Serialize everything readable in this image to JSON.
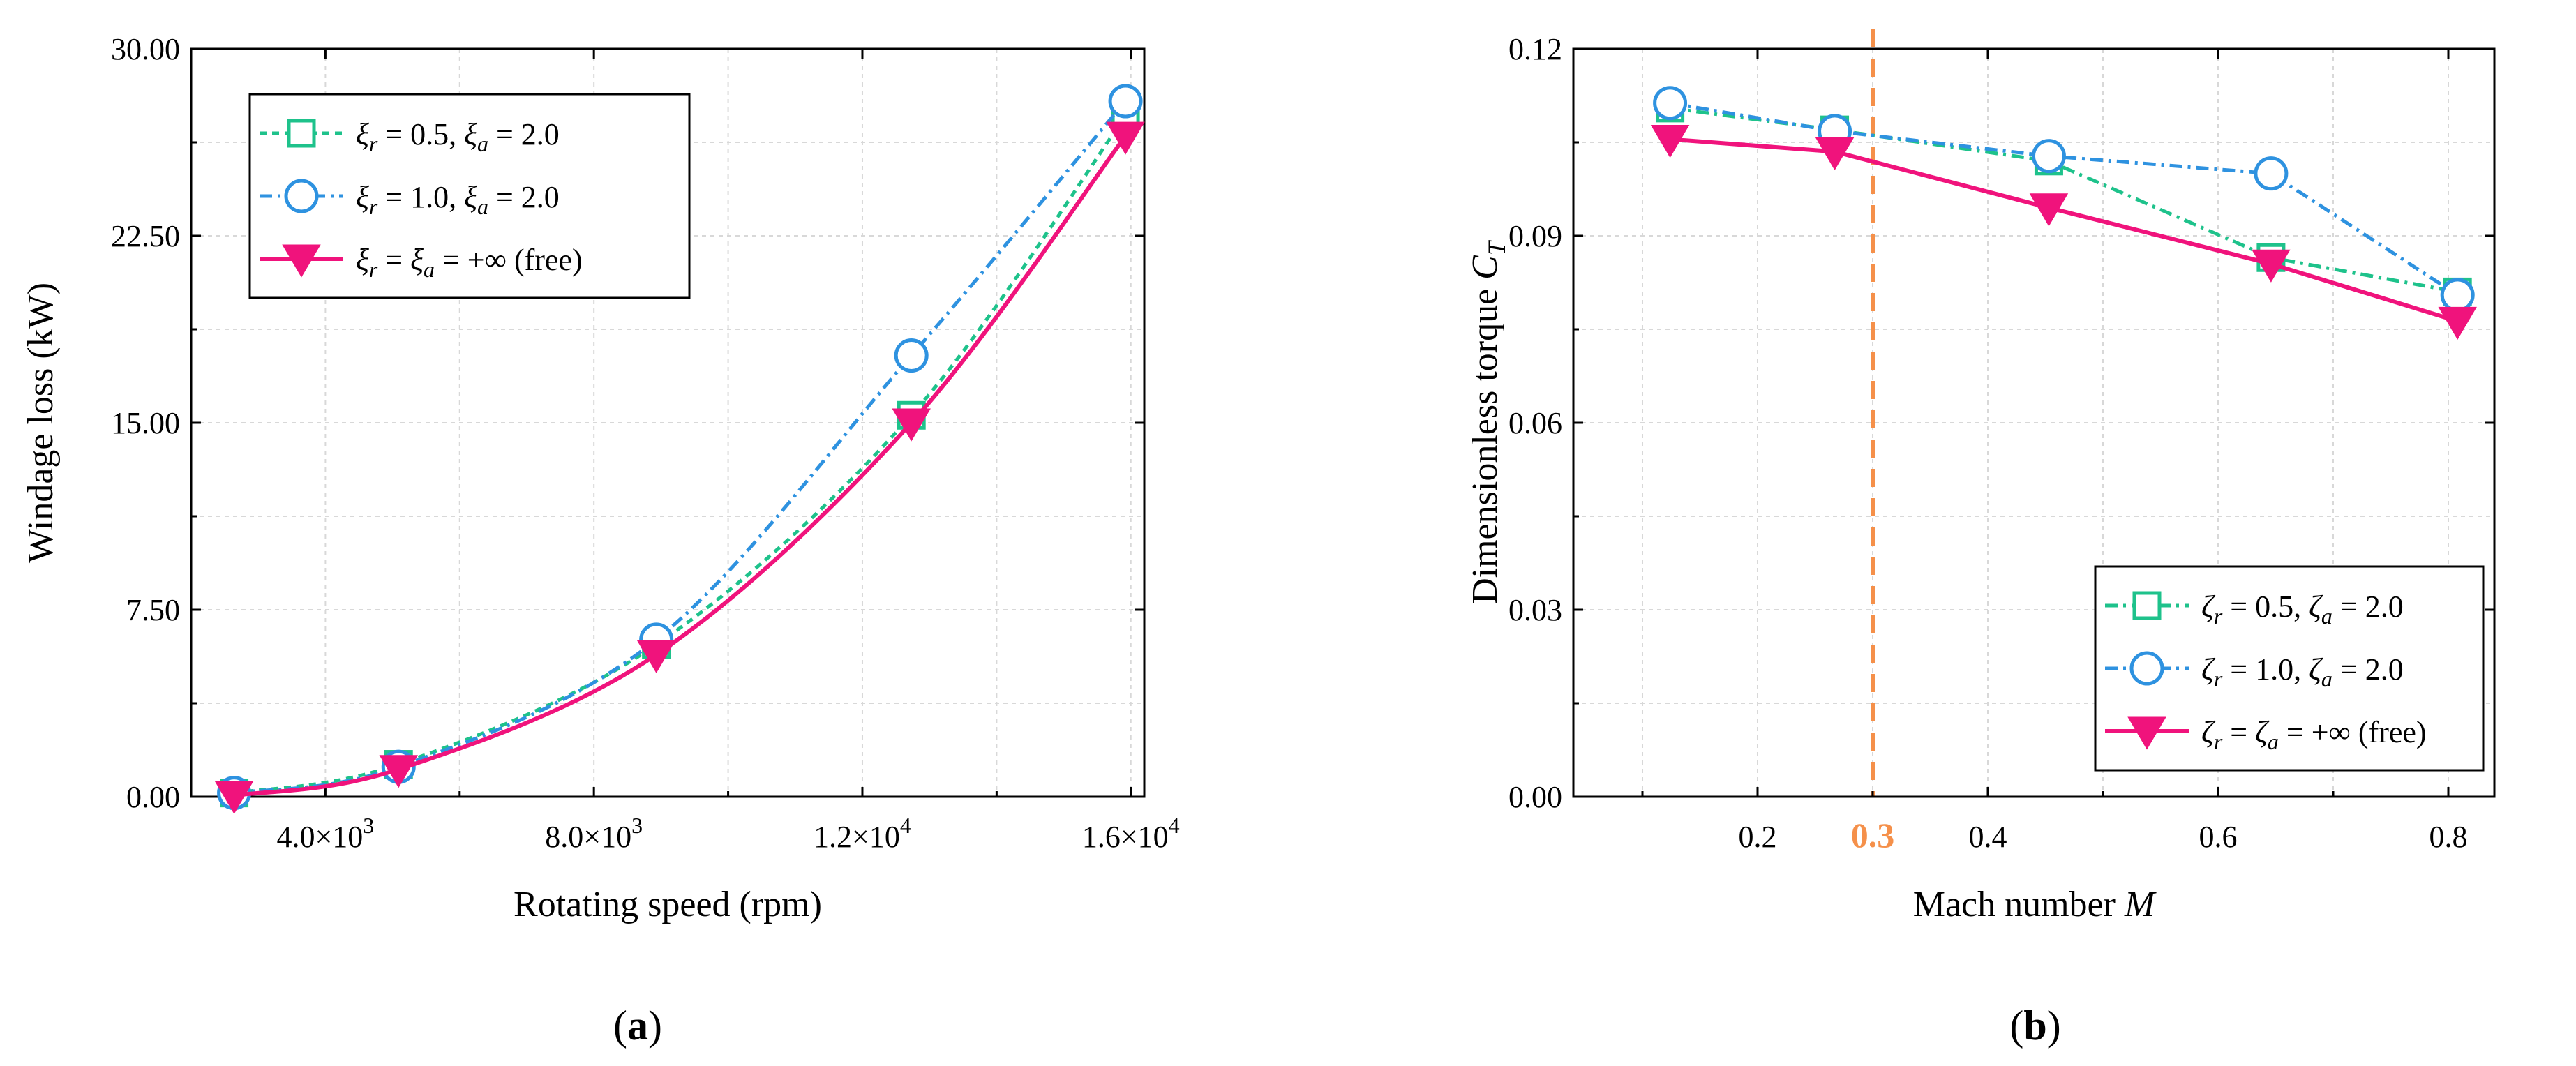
{
  "chart_data": [
    {
      "type": "line",
      "panel_label": "(a)",
      "panel_letter": "a",
      "xlabel": "Rotating speed (rpm)",
      "ylabel": "Windage loss (kW)",
      "xlim": [
        2000,
        16200
      ],
      "ylim": [
        0,
        30
      ],
      "grid": true,
      "legend_position": "top-left",
      "xticks": [
        4000,
        8000,
        12000,
        16000
      ],
      "xtick_labels": [
        {
          "mant": "4.0×10",
          "exp": "3"
        },
        {
          "mant": "8.0×10",
          "exp": "3"
        },
        {
          "mant": "1.2×10",
          "exp": "4"
        },
        {
          "mant": "1.6×10",
          "exp": "4"
        }
      ],
      "yticks": [
        0,
        7.5,
        15,
        22.5,
        30
      ],
      "ytick_labels": [
        "0.00",
        "7.50",
        "15.00",
        "22.50",
        "30.00"
      ],
      "x": [
        2640,
        5090,
        8930,
        12730,
        15920
      ],
      "series": [
        {
          "name": "ξr = 0.5, ξa = 2.0",
          "sym": "ξ",
          "rv": "0.5",
          "av": "2.0",
          "free": false,
          "color": "#1ec28b",
          "marker": "square",
          "dash": "10 8",
          "values": [
            0.15,
            1.3,
            6.1,
            15.3,
            27.3
          ]
        },
        {
          "name": "ξr = 1.0, ξa = 2.0",
          "sym": "ξ",
          "rv": "1.0",
          "av": "2.0",
          "free": false,
          "color": "#2e92e0",
          "marker": "circle",
          "dash": "18 8 4 8",
          "values": [
            0.15,
            1.2,
            6.3,
            17.7,
            27.9
          ]
        },
        {
          "name": "ξr = ξa = +∞ (free)",
          "sym": "ξ",
          "free": true,
          "freetext": "+∞ (free)",
          "color": "#f0137c",
          "marker": "triangle-down",
          "dash": "",
          "values": [
            0.05,
            1.1,
            5.7,
            15.0,
            26.5
          ]
        }
      ]
    },
    {
      "type": "line",
      "panel_label": "(b)",
      "panel_letter": "b",
      "xlabel": "Mach number M",
      "xlabel_text": "Mach number ",
      "xlabel_var": "M",
      "ylabel": "Dimensionless torque CT",
      "ylabel_text": "Dimensionless torque ",
      "ylabel_var": "C",
      "ylabel_sub": "T",
      "xlim": [
        0.04,
        0.84
      ],
      "ylim": [
        0,
        0.12
      ],
      "grid": true,
      "legend_position": "bottom-right",
      "xticks": [
        0.2,
        0.4,
        0.6,
        0.8
      ],
      "xtick_labels": [
        "0.2",
        "0.4",
        "0.6",
        "0.8"
      ],
      "yticks": [
        0,
        0.03,
        0.06,
        0.09,
        0.12
      ],
      "ytick_labels": [
        "0.00",
        "0.03",
        "0.06",
        "0.09",
        "0.12"
      ],
      "annotation": {
        "x": 0.3,
        "label": "0.3",
        "color": "#f5904a"
      },
      "x": [
        0.124,
        0.267,
        0.453,
        0.646,
        0.808
      ],
      "series": [
        {
          "name": "ζr = 0.5, ζa = 2.0",
          "sym": "ζ",
          "rv": "0.5",
          "av": "2.0",
          "free": false,
          "color": "#1ec28b",
          "marker": "square",
          "dash": "18 8 4 8",
          "values": [
            0.1105,
            0.107,
            0.102,
            0.0865,
            0.081
          ]
        },
        {
          "name": "ζr = 1.0, ζa = 2.0",
          "sym": "ζ",
          "rv": "1.0",
          "av": "2.0",
          "free": false,
          "color": "#2e92e0",
          "marker": "circle",
          "dash": "18 8 4 8",
          "values": [
            0.1113,
            0.1068,
            0.1028,
            0.1,
            0.0805
          ]
        },
        {
          "name": "ζr = ζa = +∞ (free)",
          "sym": "ζ",
          "free": true,
          "freetext": "+∞ (free)",
          "color": "#f0137c",
          "marker": "triangle-down",
          "dash": "",
          "values": [
            0.1055,
            0.1035,
            0.0945,
            0.0855,
            0.0763
          ]
        }
      ]
    }
  ]
}
